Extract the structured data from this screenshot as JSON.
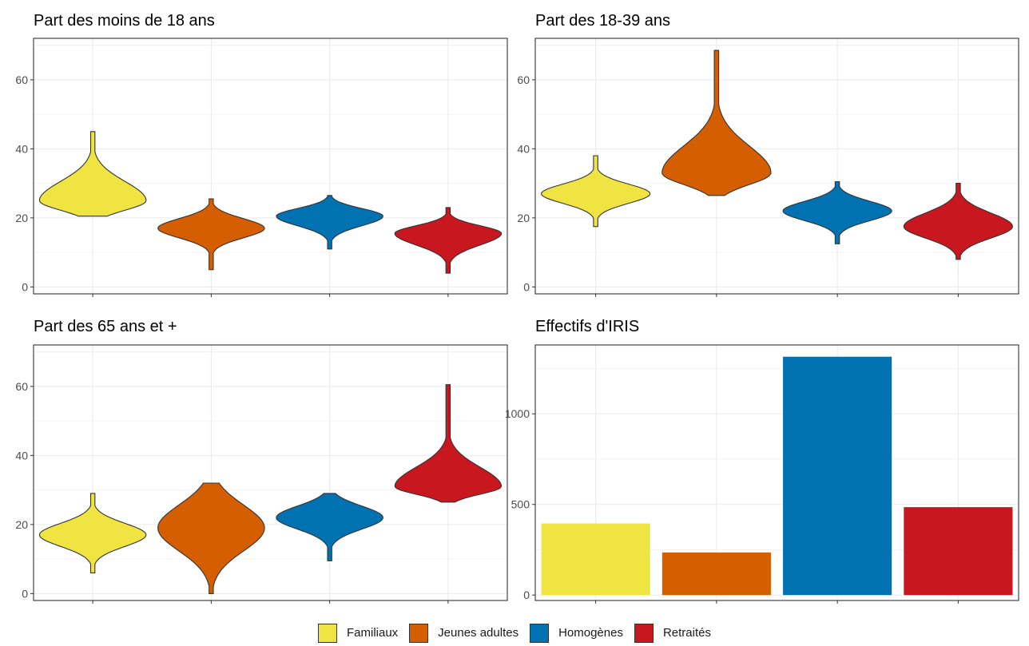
{
  "chart_data": [
    {
      "type": "violin",
      "title": "Part des moins de 18 ans",
      "ylim": [
        -2,
        72
      ],
      "yticks": [
        "0",
        "20",
        "40",
        "60"
      ],
      "series": [
        {
          "name": "Familiaux",
          "min": 20.5,
          "max": 45,
          "q1": 22.5,
          "median": 25,
          "q3": 30
        },
        {
          "name": "Jeunes adultes",
          "min": 5,
          "max": 25.5,
          "q1": 14.5,
          "median": 17,
          "q3": 19.5
        },
        {
          "name": "Homogènes",
          "min": 11,
          "max": 26.5,
          "q1": 18,
          "median": 20.5,
          "q3": 22.5
        },
        {
          "name": "Retraités",
          "min": 4,
          "max": 23,
          "q1": 12.5,
          "median": 15.5,
          "q3": 17.5
        }
      ]
    },
    {
      "type": "violin",
      "title": "Part des 18-39 ans",
      "ylim": [
        -2,
        72
      ],
      "yticks": [
        "0",
        "20",
        "40",
        "60"
      ],
      "series": [
        {
          "name": "Familiaux",
          "min": 17.5,
          "max": 38,
          "q1": 24.5,
          "median": 27,
          "q3": 29.5
        },
        {
          "name": "Jeunes adultes",
          "min": 26.5,
          "max": 68.5,
          "q1": 30,
          "median": 33,
          "q3": 40
        },
        {
          "name": "Homogènes",
          "min": 12.5,
          "max": 30.5,
          "q1": 19.5,
          "median": 22,
          "q3": 24.5
        },
        {
          "name": "Retraités",
          "min": 8,
          "max": 30,
          "q1": 14.5,
          "median": 17.5,
          "q3": 21
        }
      ]
    },
    {
      "type": "violin",
      "title": "Part des 65 ans et +",
      "ylim": [
        -2,
        72
      ],
      "yticks": [
        "0",
        "20",
        "40",
        "60"
      ],
      "series": [
        {
          "name": "Familiaux",
          "min": 6,
          "max": 29,
          "q1": 14,
          "median": 17,
          "q3": 20
        },
        {
          "name": "Jeunes adultes",
          "min": 0,
          "max": 32,
          "q1": 13,
          "median": 19,
          "q3": 25
        },
        {
          "name": "Homogènes",
          "min": 9.5,
          "max": 29,
          "q1": 19,
          "median": 22,
          "q3": 25
        },
        {
          "name": "Retraités",
          "min": 26.5,
          "max": 60.5,
          "q1": 29,
          "median": 31,
          "q3": 36
        }
      ]
    },
    {
      "type": "bar",
      "title": "Effectifs d'IRIS",
      "ylim": [
        -30,
        1380
      ],
      "yticks": [
        "0",
        "500",
        "1000"
      ],
      "categories": [
        "Familiaux",
        "Jeunes adultes",
        "Homogènes",
        "Retraités"
      ],
      "values": [
        395,
        235,
        1315,
        485
      ]
    }
  ],
  "legend": {
    "items": [
      {
        "label": "Familiaux",
        "color": "#F0E442"
      },
      {
        "label": "Jeunes adultes",
        "color": "#D55E00"
      },
      {
        "label": "Homogènes",
        "color": "#0072B2"
      },
      {
        "label": "Retraités",
        "color": "#C8171E"
      }
    ]
  },
  "colors": [
    "#F0E442",
    "#D55E00",
    "#0072B2",
    "#C8171E"
  ]
}
